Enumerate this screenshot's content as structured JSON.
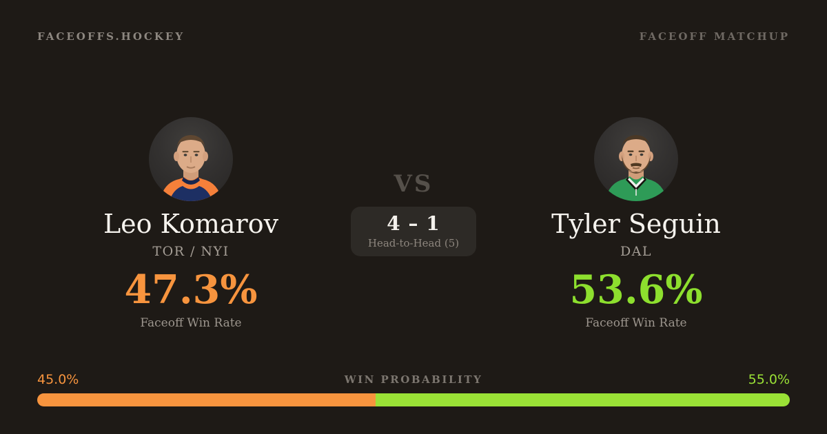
{
  "page": {
    "background": "#1e1a16"
  },
  "header": {
    "brand": "FACEOFFS.HOCKEY",
    "matchup_label": "FACEOFF MATCHUP"
  },
  "players": {
    "left": {
      "name": "Leo Komarov",
      "team": "TOR / NYI",
      "win_rate": "47.3%",
      "win_rate_label": "Faceoff Win Rate",
      "accent": "#f7943e",
      "avatar": "leo-komarov-headshot"
    },
    "right": {
      "name": "Tyler Seguin",
      "team": "DAL",
      "win_rate": "53.6%",
      "win_rate_label": "Faceoff Win Rate",
      "accent": "#8ddf2e",
      "avatar": "tyler-seguin-headshot"
    }
  },
  "center": {
    "vs": "VS",
    "score": "4 – 1",
    "subtitle": "Head-to-Head (5)"
  },
  "win_probability": {
    "label": "WIN PROBABILITY",
    "left_label": "45.0%",
    "right_label": "55.0%",
    "left_value": 45.0,
    "right_value": 55.0,
    "left_color": "#f7943e",
    "right_color": "#9ae136"
  }
}
